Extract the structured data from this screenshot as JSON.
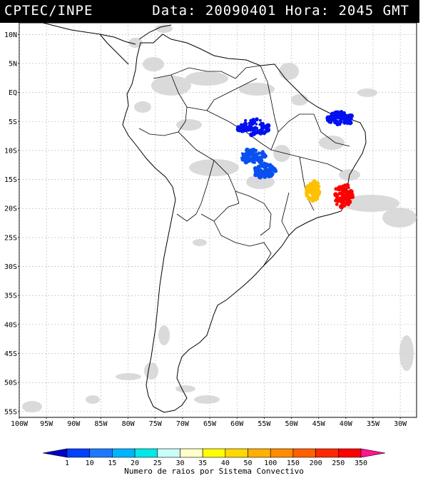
{
  "header": {
    "source": "CPTEC/INPE",
    "datetime": "Data: 20090401 Hora: 2045 GMT"
  },
  "map": {
    "lon_range": [
      -100,
      -27
    ],
    "lat_range": [
      -56,
      12
    ],
    "lat_ticks": [
      {
        "value": 10,
        "label": "10N"
      },
      {
        "value": 5,
        "label": "5N"
      },
      {
        "value": 0,
        "label": "EQ"
      },
      {
        "value": -5,
        "label": "5S"
      },
      {
        "value": -10,
        "label": "10S"
      },
      {
        "value": -15,
        "label": "15S"
      },
      {
        "value": -20,
        "label": "20S"
      },
      {
        "value": -25,
        "label": "25S"
      },
      {
        "value": -30,
        "label": "30S"
      },
      {
        "value": -35,
        "label": "35S"
      },
      {
        "value": -40,
        "label": "40S"
      },
      {
        "value": -45,
        "label": "45S"
      },
      {
        "value": -50,
        "label": "50S"
      },
      {
        "value": -55,
        "label": "55S"
      }
    ],
    "lon_ticks": [
      {
        "value": -100,
        "label": "100W"
      },
      {
        "value": -95,
        "label": "95W"
      },
      {
        "value": -90,
        "label": "90W"
      },
      {
        "value": -85,
        "label": "85W"
      },
      {
        "value": -80,
        "label": "80W"
      },
      {
        "value": -75,
        "label": "75W"
      },
      {
        "value": -70,
        "label": "70W"
      },
      {
        "value": -65,
        "label": "65W"
      },
      {
        "value": -60,
        "label": "60W"
      },
      {
        "value": -55,
        "label": "55W"
      },
      {
        "value": -50,
        "label": "50W"
      },
      {
        "value": -45,
        "label": "45W"
      },
      {
        "value": -40,
        "label": "40W"
      },
      {
        "value": -35,
        "label": "35W"
      },
      {
        "value": -30,
        "label": "30W"
      }
    ],
    "lightning_clusters": [
      {
        "lon": -57,
        "lat": -6,
        "class_color": "#0010f0"
      },
      {
        "lon": -57,
        "lat": -11,
        "class_color": "#0a50f0"
      },
      {
        "lon": -55,
        "lat": -13.5,
        "class_color": "#0a50f0"
      },
      {
        "lon": -41,
        "lat": -4.5,
        "class_color": "#0010f0"
      },
      {
        "lon": -46,
        "lat": -17,
        "class_color": "#ffc000"
      },
      {
        "lon": -40.5,
        "lat": -17.8,
        "class_color": "#ff0000"
      }
    ]
  },
  "colorbar": {
    "labels": [
      "1",
      "10",
      "15",
      "20",
      "25",
      "30",
      "35",
      "40",
      "50",
      "100",
      "150",
      "200",
      "250",
      "350"
    ],
    "colors": [
      "#0000c8",
      "#0040ff",
      "#1e78ff",
      "#00b4ff",
      "#00e8e8",
      "#c8fff8",
      "#ffffc8",
      "#ffff00",
      "#ffd800",
      "#ffb000",
      "#ff8c00",
      "#ff6000",
      "#ff2800",
      "#ff0000",
      "#ff1493"
    ],
    "title": "Numero de raios por Sistema Convectivo"
  }
}
